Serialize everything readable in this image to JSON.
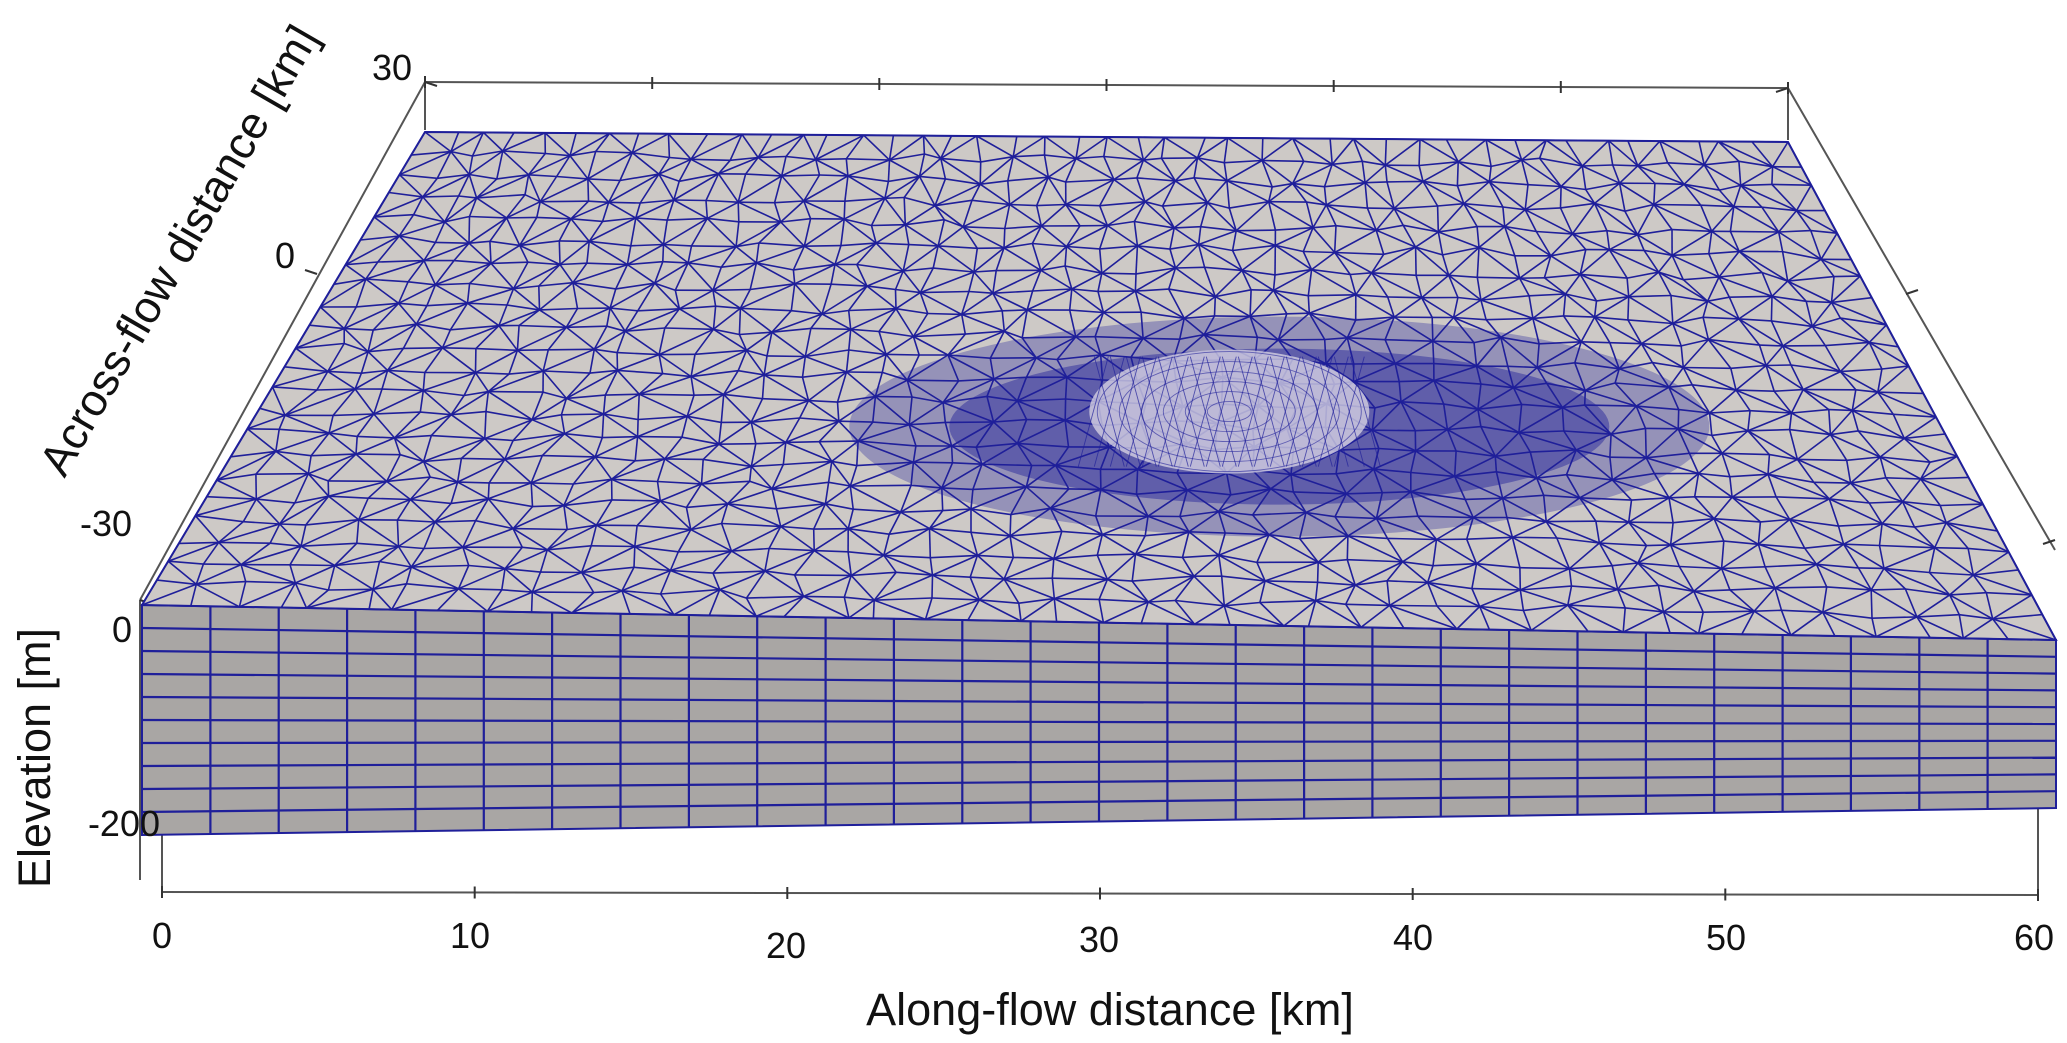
{
  "figure": {
    "along_axis": {
      "label": "Along-flow distance [km]",
      "ticks": [
        "0",
        "10",
        "20",
        "30",
        "40",
        "50",
        "60"
      ],
      "range": [
        0,
        60
      ]
    },
    "across_axis": {
      "label": "Across-flow distance [km]",
      "ticks": [
        "-30",
        "0",
        "30"
      ],
      "range": [
        -30,
        30
      ]
    },
    "elevation_axis": {
      "label": "Elevation [m]",
      "ticks": [
        "0",
        "-200"
      ],
      "range": [
        -200,
        0
      ]
    },
    "mesh": {
      "surface_color": "#cdc9c6",
      "side_color": "#a9a6a4",
      "line_color": "#1f1f9a",
      "refinement_center": [
        35,
        0
      ]
    }
  }
}
